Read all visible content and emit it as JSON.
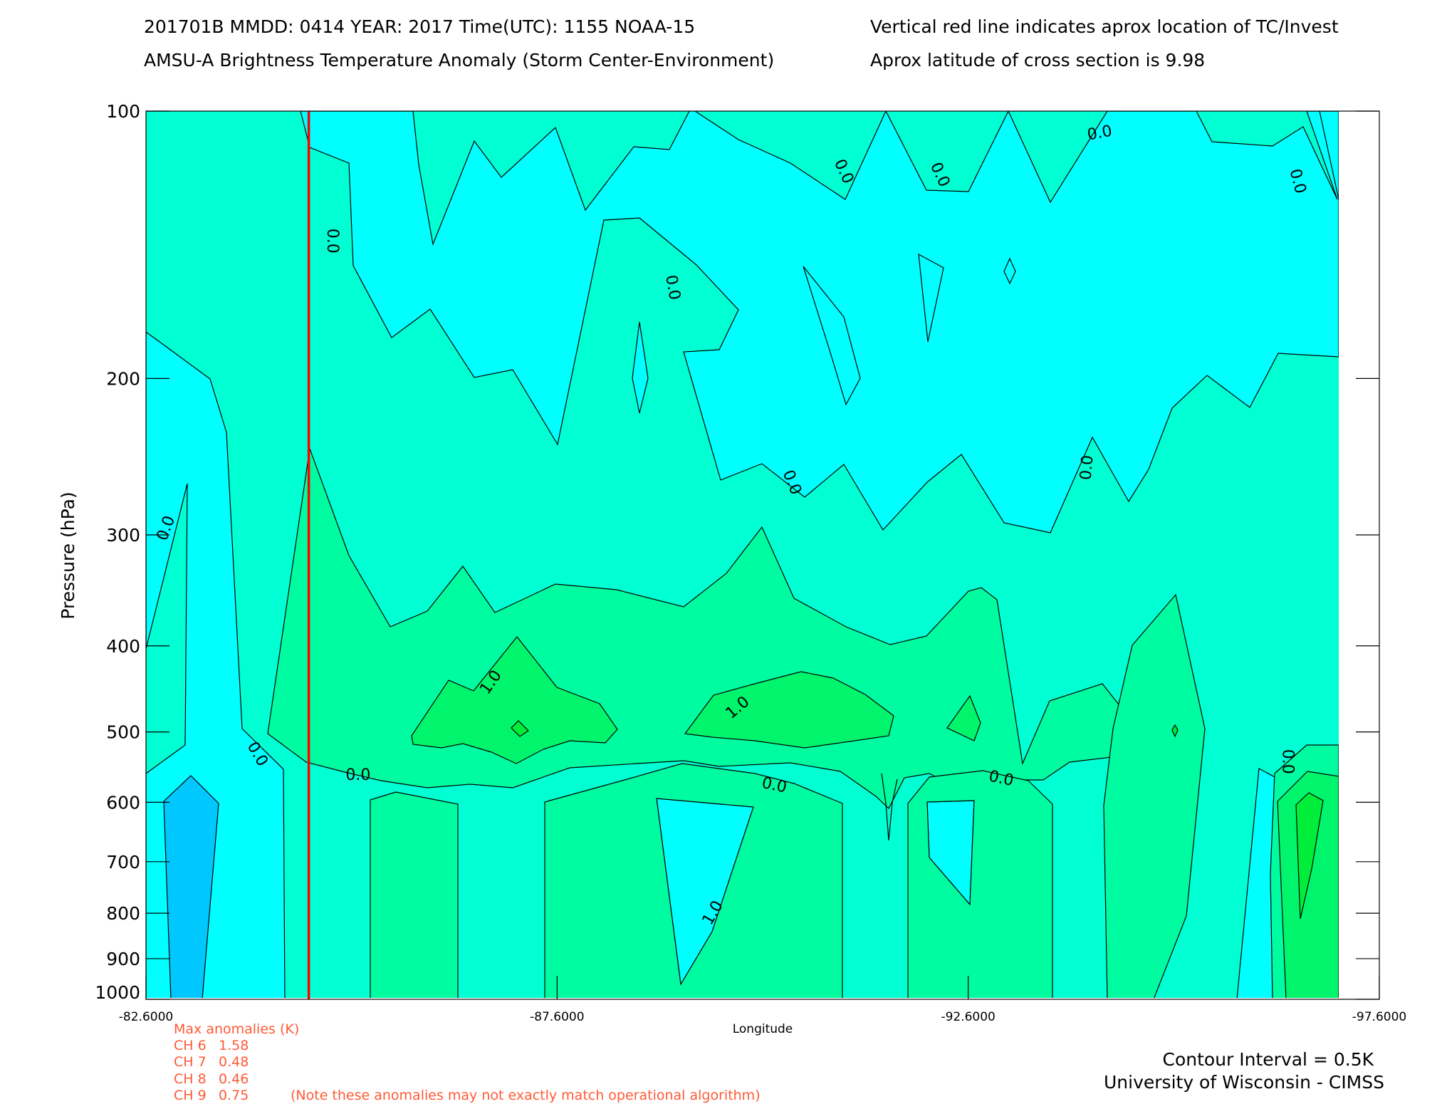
{
  "header": {
    "line1_left": "201701B  MMDD: 0414 YEAR: 2017 Time(UTC): 1155 NOAA-15",
    "line2_left": "AMSU-A Brightness Temperature Anomaly (Storm Center-Environment)",
    "line1_right": "Vertical red line indicates aprox location of TC/Invest",
    "line2_right": "Aprox latitude of cross section is 9.98"
  },
  "footer": {
    "max_title": "Max anomalies (K)",
    "channels": [
      {
        "label": "CH 6",
        "value": "1.58"
      },
      {
        "label": "CH 7",
        "value": "0.48"
      },
      {
        "label": "CH 8",
        "value": "0.46"
      },
      {
        "label": "CH 9",
        "value": "0.75"
      }
    ],
    "note": "(Note these anomalies may not exactly match operational algorithm)",
    "contour_interval": "Contour Interval = 0.5K",
    "institution": "University of Wisconsin - CIMSS"
  },
  "chart_data": {
    "type": "heatmap",
    "xlabel": "Longitude",
    "ylabel": "Pressure (hPa)",
    "xlim": [
      -82.6,
      -97.6
    ],
    "ylim": [
      1000,
      100
    ],
    "y_scale": "log",
    "x_ticks": [
      {
        "value": -82.6,
        "label": "-82.6000"
      },
      {
        "value": -87.6,
        "label": "-87.6000"
      },
      {
        "value": -92.6,
        "label": "-92.6000"
      },
      {
        "value": -97.6,
        "label": "-97.6000"
      }
    ],
    "y_ticks": [
      100,
      200,
      300,
      400,
      500,
      600,
      700,
      800,
      900,
      1000
    ],
    "storm_longitude": -84.58,
    "storm_line_color": "#ff0000",
    "data_extent_lon": [
      -82.6,
      -97.1
    ],
    "contour_interval_K": 0.5,
    "fill_colors": {
      "-1.0": "#00c8ff",
      "-0.5": "#00ffff",
      "0.0": "#00ffd2",
      "0.5": "#00fca0",
      "1.0": "#00f56c",
      "1.5": "#00ee3a"
    },
    "contour_labels": [
      {
        "text": "0.0",
        "lon": -84.86,
        "p": 140,
        "angle": 90
      },
      {
        "text": "0.0",
        "lon": -85.18,
        "p": 560,
        "angle": 0
      },
      {
        "text": "1.0",
        "lon": -86.8,
        "p": 440,
        "angle": -55
      },
      {
        "text": "0.0",
        "lon": -89.0,
        "p": 158,
        "angle": 80
      },
      {
        "text": "0.0",
        "lon": -90.45,
        "p": 262,
        "angle": 68
      },
      {
        "text": "1.0",
        "lon": -89.8,
        "p": 470,
        "angle": -40
      },
      {
        "text": "0.0",
        "lon": -90.24,
        "p": 575,
        "angle": 12
      },
      {
        "text": "1.0",
        "lon": -89.5,
        "p": 800,
        "angle": -60
      },
      {
        "text": "0.0",
        "lon": -91.08,
        "p": 117,
        "angle": 65
      },
      {
        "text": "0.0",
        "lon": -92.25,
        "p": 118,
        "angle": 65
      },
      {
        "text": "0.0",
        "lon": -93.0,
        "p": 565,
        "angle": 12
      },
      {
        "text": "0.0",
        "lon": -94.2,
        "p": 106,
        "angle": -10
      },
      {
        "text": "0.0",
        "lon": -94.05,
        "p": 252,
        "angle": -85
      },
      {
        "text": "0.0",
        "lon": -96.6,
        "p": 120,
        "angle": 75
      },
      {
        "text": "0.0",
        "lon": -96.48,
        "p": 540,
        "angle": 90
      },
      {
        "text": "0.0",
        "lon": -82.85,
        "p": 295,
        "angle": -70
      },
      {
        "text": "0.0",
        "lon": -83.95,
        "p": 530,
        "angle": 60
      }
    ]
  }
}
